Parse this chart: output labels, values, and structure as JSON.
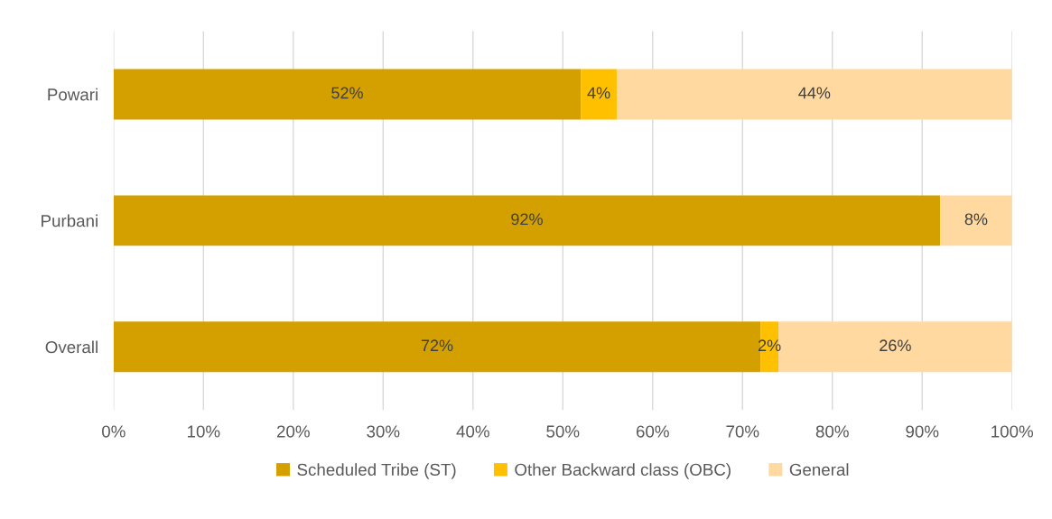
{
  "chart_data": {
    "type": "bar",
    "orientation": "horizontal",
    "stacked": true,
    "categories": [
      "Powari",
      "Purbani",
      "Overall"
    ],
    "series": [
      {
        "name": "Scheduled Tribe (ST)",
        "color": "#d4a000",
        "values": [
          52,
          92,
          72
        ],
        "value_labels": [
          "52%",
          "92%",
          "72%"
        ]
      },
      {
        "name": "Other Backward class (OBC)",
        "color": "#ffc000",
        "values": [
          4,
          0,
          2
        ],
        "value_labels": [
          "4%",
          null,
          "2%"
        ]
      },
      {
        "name": "General",
        "color": "#ffd9a0",
        "values": [
          44,
          8,
          26
        ],
        "value_labels": [
          "44%",
          "8%",
          "26%"
        ]
      }
    ],
    "xlim": [
      0,
      100
    ],
    "xticks": [
      {
        "value": 0,
        "label": "0%"
      },
      {
        "value": 10,
        "label": "10%"
      },
      {
        "value": 20,
        "label": "20%"
      },
      {
        "value": 30,
        "label": "30%"
      },
      {
        "value": 40,
        "label": "40%"
      },
      {
        "value": 50,
        "label": "50%"
      },
      {
        "value": 60,
        "label": "60%"
      },
      {
        "value": 70,
        "label": "70%"
      },
      {
        "value": 80,
        "label": "80%"
      },
      {
        "value": 90,
        "label": "90%"
      },
      {
        "value": 100,
        "label": "100%"
      }
    ],
    "grid": "x",
    "legend": "bottom"
  }
}
